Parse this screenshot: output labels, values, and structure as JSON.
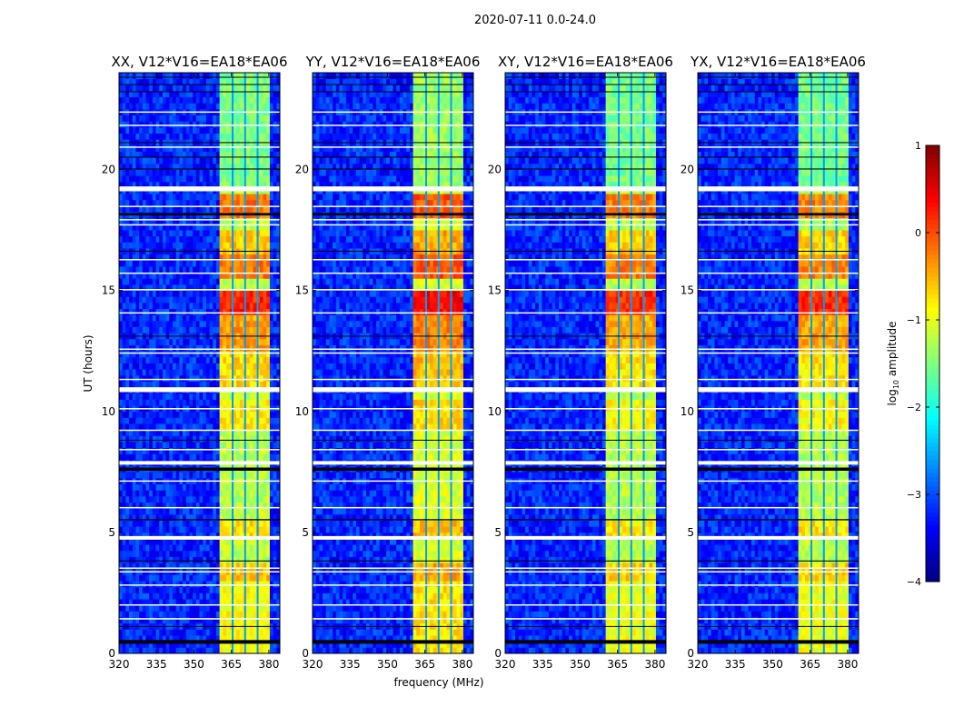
{
  "chart_data": {
    "type": "heatmap",
    "suptitle": "2020-07-11 0.0-24.0",
    "xlabel": "frequency (MHz)",
    "ylabel": "UT (hours)",
    "xlim": [
      320,
      384.4
    ],
    "ylim": [
      0,
      24
    ],
    "xticks": [
      "320",
      "335",
      "350",
      "365",
      "380"
    ],
    "yticks": [
      "0",
      "5",
      "10",
      "15",
      "20"
    ],
    "panels": [
      {
        "title": "XX, V12*V16=EA18*EA06",
        "band_offset": 0
      },
      {
        "title": "YY, V12*V16=EA18*EA06",
        "band_offset": 0.15
      },
      {
        "title": "XY, V12*V16=EA18*EA06",
        "band_offset": -0.05
      },
      {
        "title": "YX, V12*V16=EA18*EA06",
        "band_offset": -0.05
      }
    ],
    "colorbar": {
      "label": "log10 amplitude",
      "label_main": "log",
      "label_sub": "10",
      "label_rest": " amplitude",
      "range": [
        -4,
        1
      ],
      "ticks": [
        "1",
        "0",
        "−1",
        "−2",
        "−3",
        "−4"
      ],
      "colormap": "jet"
    },
    "background_level": -3.2,
    "band": {
      "start_mhz": 360.7,
      "end_mhz": 380,
      "dividers_mhz": [
        365.5,
        370.5,
        375.5
      ],
      "default_level": -1.2
    },
    "band_episodes": [
      {
        "t0": 0,
        "t1": 3,
        "level": -0.9
      },
      {
        "t0": 3,
        "t1": 3.7,
        "level": -0.6
      },
      {
        "t0": 4.8,
        "t1": 5.5,
        "level": -0.7
      },
      {
        "t0": 9.2,
        "t1": 10.6,
        "level": -0.8
      },
      {
        "t0": 11.1,
        "t1": 12.5,
        "level": -0.7
      },
      {
        "t0": 12.6,
        "t1": 14.1,
        "level": -0.4
      },
      {
        "t0": 14.1,
        "t1": 14.9,
        "level": 0.2
      },
      {
        "t0": 15.4,
        "t1": 16.4,
        "level": -0.2
      },
      {
        "t0": 16.4,
        "t1": 17.6,
        "level": -0.6
      },
      {
        "t0": 18.0,
        "t1": 18.9,
        "level": -0.2
      },
      {
        "t0": 19.3,
        "t1": 24,
        "level": -1.5
      }
    ],
    "flagged_white_hours": [
      [
        19.1,
        19.3
      ],
      [
        10.8,
        11.0
      ],
      [
        7.8,
        7.95
      ],
      [
        4.7,
        4.85
      ],
      [
        3.5,
        3.55
      ],
      [
        3.35,
        3.4
      ],
      [
        2.8,
        2.85
      ],
      [
        1.4,
        1.46
      ],
      [
        2.0,
        2.03
      ],
      [
        15.0,
        15.06
      ],
      [
        14.05,
        14.1
      ],
      [
        12.55,
        12.6
      ],
      [
        12.4,
        12.44
      ],
      [
        22.35,
        22.4
      ],
      [
        21.8,
        21.85
      ],
      [
        20.9,
        20.95
      ],
      [
        18.45,
        18.5
      ],
      [
        17.9,
        17.95
      ],
      [
        17.7,
        17.74
      ],
      [
        16.25,
        16.3
      ],
      [
        15.7,
        15.74
      ],
      [
        9.2,
        9.25
      ],
      [
        8.4,
        8.45
      ],
      [
        6.0,
        6.05
      ],
      [
        7.1,
        7.15
      ],
      [
        10.1,
        10.14
      ],
      [
        11.3,
        11.35
      ]
    ],
    "flagged_black_hours": [
      [
        0.4,
        0.55
      ],
      [
        5.5,
        5.55
      ],
      [
        7.55,
        7.68
      ],
      [
        18.1,
        18.2
      ],
      [
        20.0,
        20.04
      ],
      [
        20.5,
        20.53
      ],
      [
        16.6,
        16.64
      ],
      [
        23.2,
        23.23
      ],
      [
        23.5,
        23.53
      ],
      [
        23.8,
        23.83
      ],
      [
        21.1,
        21.13
      ],
      [
        8.8,
        8.83
      ],
      [
        3.8,
        3.84
      ],
      [
        1.1,
        1.13
      ],
      [
        13.1,
        13.13
      ]
    ]
  }
}
